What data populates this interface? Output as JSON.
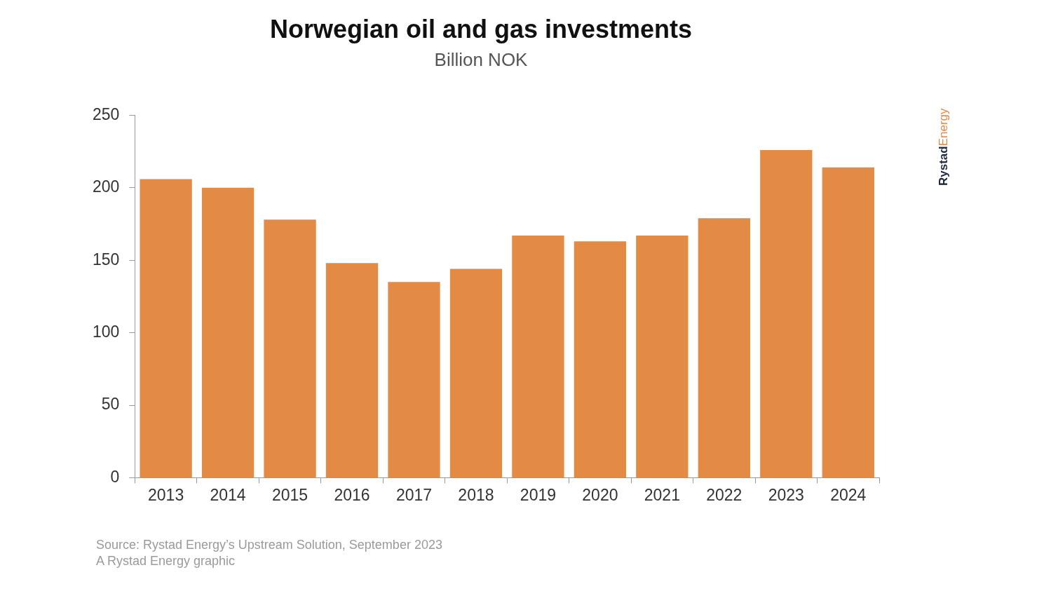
{
  "chart_data": {
    "type": "bar",
    "title": "Norwegian oil and gas investments",
    "subtitle": "Billion NOK",
    "categories": [
      "2013",
      "2014",
      "2015",
      "2016",
      "2017",
      "2018",
      "2019",
      "2020",
      "2021",
      "2022",
      "2023",
      "2024"
    ],
    "values": [
      206,
      200,
      178,
      148,
      135,
      144,
      167,
      163,
      167,
      179,
      226,
      214
    ],
    "color": "#e38a45",
    "ylim": [
      0,
      250
    ],
    "yticks": [
      0,
      50,
      100,
      150,
      200,
      250
    ],
    "grid": false,
    "source": [
      "Source: Rystad Energy’s Upstream Solution, September 2023",
      "A Rystad Energy graphic"
    ],
    "logo": [
      "Rystad",
      "Energy"
    ]
  }
}
